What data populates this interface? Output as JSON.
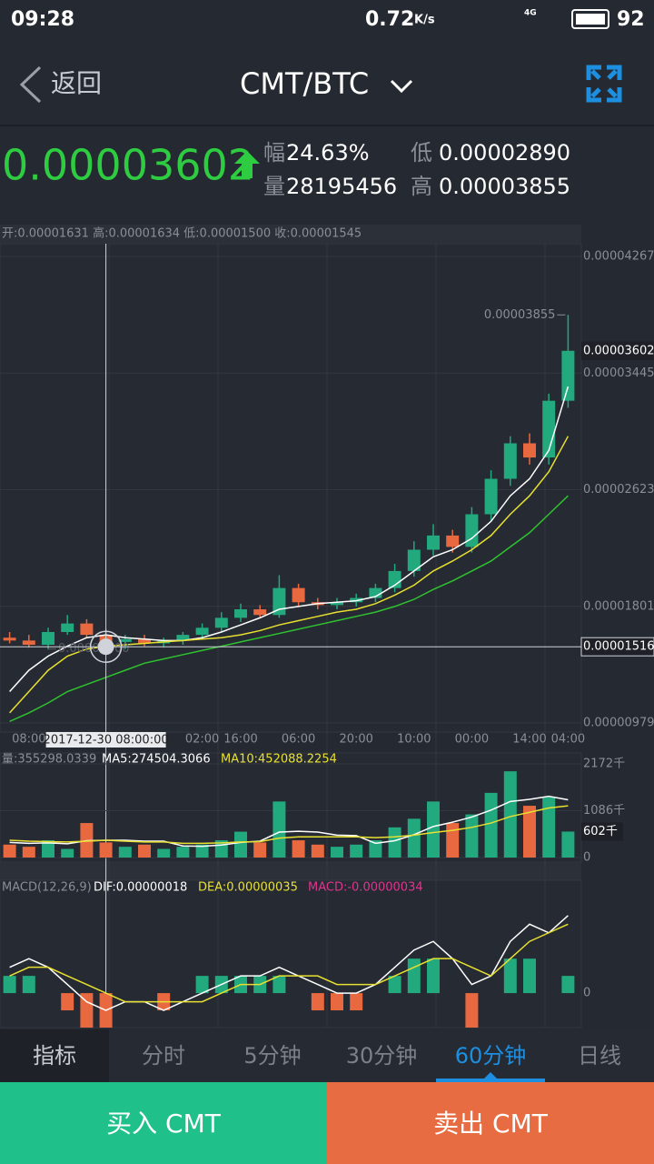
{
  "status_bar": {
    "time": "09:28",
    "speed": "0.72",
    "speed_unit": "K/s",
    "network": "4G",
    "battery": "92"
  },
  "header": {
    "back": "返回",
    "title": "CMT/BTC"
  },
  "quote": {
    "price": "0.00003602",
    "change_label": "幅",
    "change": "24.63%",
    "volume_label": "量",
    "volume": "28195456",
    "low_label": "低",
    "low": "0.00002890",
    "high_label": "高",
    "high": "0.00003855"
  },
  "tabs": [
    "指标",
    "分时",
    "5分钟",
    "30分钟",
    "60分钟",
    "日线"
  ],
  "active_tab": 4,
  "buttons": {
    "buy": "买入 CMT",
    "sell": "卖出 CMT"
  },
  "chart_data": [
    {
      "type": "candlestick",
      "info": "开:0.00001631 高:0.00001634 低:0.00001500 收:0.00001545",
      "categories": [
        null,
        "08:00",
        null,
        null,
        null,
        null,
        null,
        null,
        null,
        null,
        "02:00",
        null,
        "16:00",
        null,
        null,
        "06:00",
        null,
        null,
        "20:00",
        null,
        null,
        "10:00",
        null,
        null,
        "00:00",
        null,
        null,
        "14:00",
        null,
        "04:00"
      ],
      "open": [
        1.58e-05,
        1.56e-05,
        1.53e-05,
        1.62e-05,
        1.68e-05,
        1.6e-05,
        1.55e-05,
        1.57e-05,
        1.54e-05,
        1.56e-05,
        1.6e-05,
        1.65e-05,
        1.72e-05,
        1.78e-05,
        1.74e-05,
        1.93e-05,
        1.83e-05,
        1.81e-05,
        1.83e-05,
        1.86e-05,
        1.93e-05,
        2.05e-05,
        2.2e-05,
        2.3e-05,
        2.22e-05,
        2.45e-05,
        2.7e-05,
        2.95e-05,
        2.85e-05,
        3.25e-05
      ],
      "high": [
        1.62e-05,
        1.6e-05,
        1.65e-05,
        1.74e-05,
        1.71e-05,
        1.64e-05,
        1.6e-05,
        1.6e-05,
        1.58e-05,
        1.62e-05,
        1.68e-05,
        1.76e-05,
        1.82e-05,
        1.81e-05,
        2.02e-05,
        1.96e-05,
        1.86e-05,
        1.86e-05,
        1.89e-05,
        1.96e-05,
        2.1e-05,
        2.26e-05,
        2.38e-05,
        2.34e-05,
        2.5e-05,
        2.76e-05,
        3e-05,
        3.02e-05,
        3.3e-05,
        3.855e-05
      ],
      "low": [
        1.54e-05,
        1.51e-05,
        1.5e-05,
        1.6e-05,
        1.58e-05,
        1.52e-05,
        1.5e-05,
        1.52e-05,
        1.51e-05,
        1.53e-05,
        1.57e-05,
        1.62e-05,
        1.69e-05,
        1.72e-05,
        1.72e-05,
        1.8e-05,
        1.78e-05,
        1.78e-05,
        1.8e-05,
        1.83e-05,
        1.9e-05,
        2.01e-05,
        2.16e-05,
        2.18e-05,
        2.18e-05,
        2.4e-05,
        2.65e-05,
        2.8e-05,
        2.8e-05,
        3.2e-05
      ],
      "close": [
        1.56e-05,
        1.53e-05,
        1.62e-05,
        1.68e-05,
        1.6e-05,
        1.55e-05,
        1.57e-05,
        1.54e-05,
        1.56e-05,
        1.6e-05,
        1.65e-05,
        1.72e-05,
        1.78e-05,
        1.74e-05,
        1.93e-05,
        1.83e-05,
        1.81e-05,
        1.83e-05,
        1.86e-05,
        1.93e-05,
        2.05e-05,
        2.2e-05,
        2.3e-05,
        2.22e-05,
        2.45e-05,
        2.7e-05,
        2.95e-05,
        2.85e-05,
        3.25e-05,
        3.602e-05
      ],
      "up_color": "#22a97e",
      "down_color": "#e8693f",
      "series": [
        {
          "color": "#ffffff",
          "values": [
            1.2e-05,
            1.35e-05,
            1.45e-05,
            1.52e-05,
            1.58e-05,
            1.6e-05,
            1.58e-05,
            1.57e-05,
            1.56e-05,
            1.56e-05,
            1.58e-05,
            1.62e-05,
            1.67e-05,
            1.72e-05,
            1.78e-05,
            1.8e-05,
            1.82e-05,
            1.83e-05,
            1.84e-05,
            1.87e-05,
            1.95e-05,
            2.05e-05,
            2.15e-05,
            2.2e-05,
            2.28e-05,
            2.4e-05,
            2.58e-05,
            2.7e-05,
            2.9e-05,
            3.35e-05
          ]
        },
        {
          "color": "#e8e030",
          "values": [
            1.05e-05,
            1.2e-05,
            1.35e-05,
            1.45e-05,
            1.5e-05,
            1.52e-05,
            1.53e-05,
            1.54e-05,
            1.55e-05,
            1.56e-05,
            1.57e-05,
            1.58e-05,
            1.6e-05,
            1.63e-05,
            1.67e-05,
            1.7e-05,
            1.73e-05,
            1.76e-05,
            1.78e-05,
            1.82e-05,
            1.88e-05,
            1.95e-05,
            2.05e-05,
            2.12e-05,
            2.2e-05,
            2.3e-05,
            2.45e-05,
            2.58e-05,
            2.75e-05,
            3e-05
          ]
        },
        {
          "color": "#2ec32e",
          "values": [
            9.9e-06,
            1.05e-05,
            1.12e-05,
            1.2e-05,
            1.25e-05,
            1.3e-05,
            1.35e-05,
            1.4e-05,
            1.43e-05,
            1.46e-05,
            1.49e-05,
            1.52e-05,
            1.55e-05,
            1.58e-05,
            1.61e-05,
            1.64e-05,
            1.67e-05,
            1.7e-05,
            1.73e-05,
            1.76e-05,
            1.8e-05,
            1.85e-05,
            1.92e-05,
            1.98e-05,
            2.05e-05,
            2.12e-05,
            2.22e-05,
            2.32e-05,
            2.45e-05,
            2.58e-05
          ]
        }
      ],
      "ylim": [
        9.79e-06,
        4.267e-05
      ],
      "yticks": [
        9.79e-06,
        1.801e-05,
        2.623e-05,
        3.445e-05,
        4.267e-05
      ],
      "last_price": 3.602e-05,
      "max_label": 3.855e-05,
      "min_label": {
        "value": 1.5e-05,
        "label": "0.00001500"
      },
      "crosshair": {
        "index": 5,
        "x_label": "2017-12-30 08:00:00",
        "value": 1.516e-05
      },
      "grid": true
    },
    {
      "type": "bar",
      "series": [
        {
          "name": "量:355298.0339",
          "color": "#999999",
          "values": [
            300,
            250,
            400,
            200,
            800,
            350,
            250,
            300,
            200,
            250,
            300,
            400,
            600,
            350,
            1300,
            400,
            300,
            250,
            300,
            400,
            700,
            900,
            1300,
            800,
            1000,
            1500,
            2000,
            1200,
            1400,
            602
          ]
        },
        {
          "name": "MA5:274504.3066",
          "color": "#ffffff",
          "values": [
            350,
            330,
            340,
            320,
            390,
            400,
            400,
            380,
            380,
            270,
            260,
            290,
            350,
            380,
            590,
            610,
            590,
            520,
            510,
            330,
            390,
            530,
            720,
            820,
            940,
            1100,
            1300,
            1350,
            1420,
            1340
          ]
        },
        {
          "name": "MA10:452088.2254",
          "color": "#e8e030",
          "values": [
            400,
            380,
            370,
            360,
            380,
            400,
            380,
            360,
            360,
            330,
            330,
            340,
            360,
            370,
            450,
            480,
            480,
            480,
            480,
            460,
            480,
            520,
            580,
            630,
            700,
            800,
            950,
            1050,
            1150,
            1200
          ]
        }
      ],
      "ylim": [
        0,
        2172
      ],
      "yticks": [
        0,
        {
          "value": 1086,
          "label": "1086千"
        },
        {
          "value": 2172,
          "label": "2172千"
        }
      ],
      "last_value": {
        "value": 602,
        "label": "602千"
      }
    },
    {
      "type": "macd",
      "title": "MACD(12,26,9)",
      "series": [
        {
          "name": "DIF:0.00000018",
          "color": "#ffffff",
          "values": [
            3e-07,
            4e-07,
            3e-07,
            1e-07,
            -1e-07,
            -2e-07,
            -1e-07,
            -1e-07,
            -2e-07,
            -1e-07,
            0,
            1e-07,
            2e-07,
            2e-07,
            3e-07,
            2e-07,
            1e-07,
            0,
            0,
            1e-07,
            3e-07,
            5e-07,
            6e-07,
            4e-07,
            1e-07,
            2e-07,
            6e-07,
            8e-07,
            7e-07,
            9e-07
          ]
        },
        {
          "name": "DEA:0.00000035",
          "color": "#e8e030",
          "values": [
            2e-07,
            3e-07,
            3e-07,
            2e-07,
            1e-07,
            0,
            -1e-07,
            -1e-07,
            -1e-07,
            -1e-07,
            -1e-07,
            0,
            1e-07,
            1e-07,
            2e-07,
            2e-07,
            2e-07,
            1e-07,
            1e-07,
            1e-07,
            2e-07,
            3e-07,
            4e-07,
            4e-07,
            3e-07,
            2e-07,
            4e-07,
            6e-07,
            7e-07,
            8e-07
          ]
        },
        {
          "name": "MACD:-0.00000034",
          "color": "#e0358f",
          "values": [
            2e-07,
            2e-07,
            0,
            -2e-07,
            -4e-07,
            -4e-07,
            0,
            0,
            -2e-07,
            0,
            2e-07,
            2e-07,
            2e-07,
            2e-07,
            2e-07,
            0,
            -2e-07,
            -2e-07,
            -2e-07,
            0,
            2e-07,
            4e-07,
            4e-07,
            0,
            -4e-07,
            0,
            4e-07,
            4e-07,
            0,
            2e-07
          ]
        }
      ],
      "ylim": [
        -4e-07,
        1.13e-06
      ],
      "yticks": [
        0
      ]
    }
  ]
}
